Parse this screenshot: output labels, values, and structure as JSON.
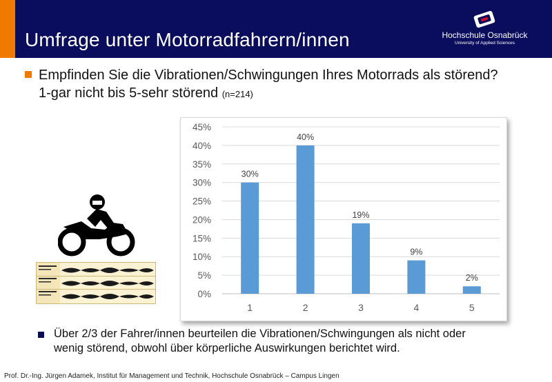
{
  "header": {
    "title": "Umfrage unter Motorradfahrern/innen",
    "logo_name": "Hochschule Osnabrück",
    "logo_sub": "University of Applied Sciences",
    "colors": {
      "header_bg": "#0a0c5c",
      "accent": "#f07a00"
    }
  },
  "question": {
    "line1": "Empfinden Sie die Vibrationen/Schwingungen Ihres Motorrads als störend?",
    "line2": "1-gar nicht bis 5-sehr störend",
    "n": "(n=214)"
  },
  "chart_data": {
    "type": "bar",
    "categories": [
      "1",
      "2",
      "3",
      "4",
      "5"
    ],
    "values": [
      30,
      40,
      19,
      9,
      2
    ],
    "data_labels": [
      "30%",
      "40%",
      "19%",
      "9%",
      "2%"
    ],
    "ylim": [
      0,
      45
    ],
    "yticks": [
      "0%",
      "5%",
      "10%",
      "15%",
      "20%",
      "25%",
      "30%",
      "35%",
      "40%",
      "45%"
    ],
    "grid": true,
    "bar_color": "#5b9bd5"
  },
  "conclusion": {
    "line1": "Über 2/3 der Fahrer/innen beurteilen die Vibrationen/Schwingungen als nicht oder",
    "line2": "wenig störend, obwohl über körperliche Auswirkungen berichtet wird."
  },
  "footer": "Prof. Dr.-Ing. Jürgen Adamek,  Institut für Management und Technik, Hochschule Osnabrück – Campus Lingen",
  "icons": [
    "motorcycle-rider-icon",
    "waveform-thumbnail",
    "university-logo-icon"
  ]
}
